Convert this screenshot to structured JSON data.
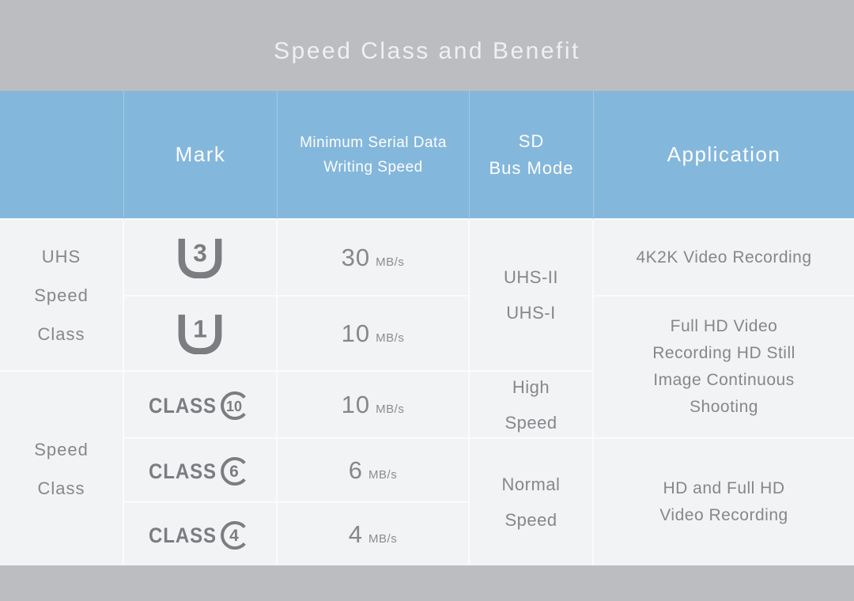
{
  "page": {
    "title": "Speed Class and Benefit"
  },
  "colors": {
    "background_gray": "#bcbdc0",
    "header_blue": "#84b7dc",
    "cell_background": "#f2f3f5",
    "grid_line": "#fafbfd",
    "body_text_gray": "#85878a",
    "mark_gray": "#7b7d80",
    "header_text": "#ffffff"
  },
  "table": {
    "column_headers": {
      "mark": "Mark",
      "min_serial_speed": [
        "Minimum Serial Data",
        "Writing Speed"
      ],
      "sd_bus_mode": [
        "SD",
        "Bus Mode"
      ],
      "application": "Application"
    },
    "row_groups": [
      {
        "label": [
          "UHS",
          "Speed",
          "Class"
        ]
      },
      {
        "label": [
          "Speed",
          "Class"
        ]
      }
    ],
    "rows": [
      {
        "mark_type": "uhs",
        "mark_number": "3",
        "speed_value": "30",
        "speed_unit": "MB/s"
      },
      {
        "mark_type": "uhs",
        "mark_number": "1",
        "speed_value": "10",
        "speed_unit": "MB/s"
      },
      {
        "mark_type": "class",
        "mark_word": "CLASS",
        "mark_number": "10",
        "speed_value": "10",
        "speed_unit": "MB/s"
      },
      {
        "mark_type": "class",
        "mark_word": "CLASS",
        "mark_number": "6",
        "speed_value": "6",
        "speed_unit": "MB/s"
      },
      {
        "mark_type": "class",
        "mark_word": "CLASS",
        "mark_number": "4",
        "speed_value": "4",
        "speed_unit": "MB/s"
      }
    ],
    "bus_modes": [
      {
        "label": [
          "UHS-II",
          "UHS-I"
        ]
      },
      {
        "label": [
          "High",
          "Speed"
        ]
      },
      {
        "label": [
          "Normal",
          "Speed"
        ]
      }
    ],
    "applications": [
      {
        "label": [
          "4K2K Video Recording"
        ]
      },
      {
        "label": [
          "Full HD Video",
          "Recording HD Still",
          "Image Continuous",
          "Shooting"
        ]
      },
      {
        "label": [
          "HD and Full HD",
          "Video Recording"
        ]
      }
    ]
  }
}
